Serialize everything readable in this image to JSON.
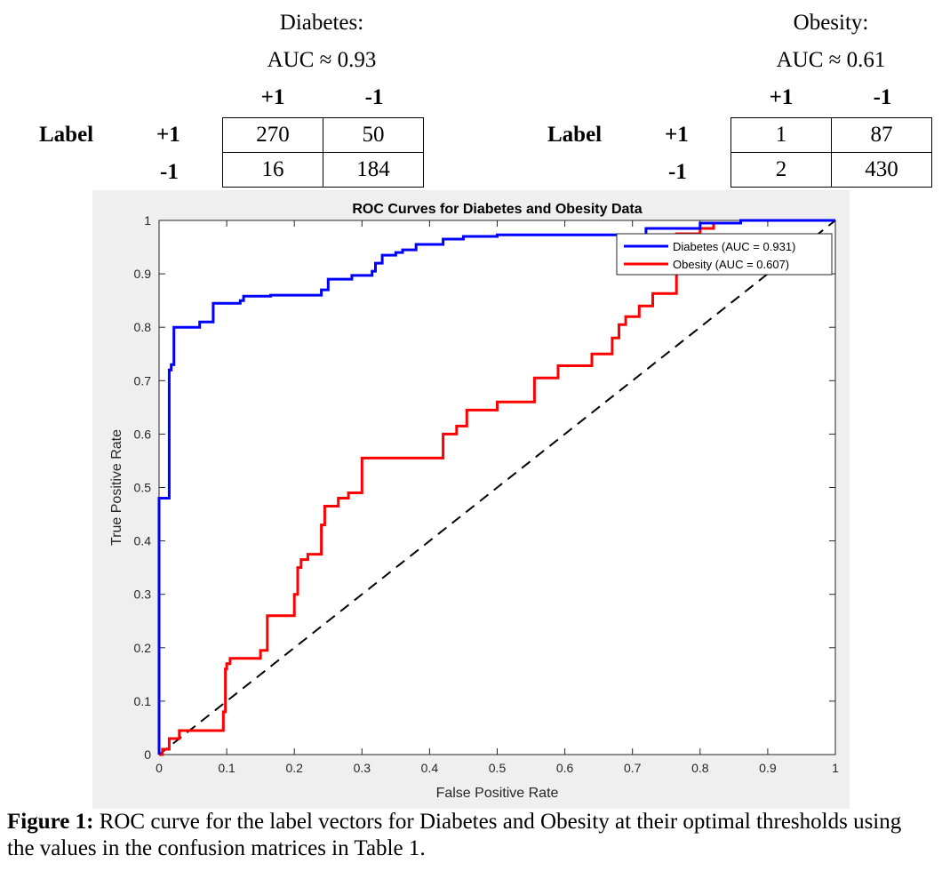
{
  "matrices": [
    {
      "title": "Diabetes:",
      "auc": "AUC ≈ 0.93",
      "row_label": "Label",
      "col_heads": [
        "+1",
        "-1"
      ],
      "row_heads": [
        "+1",
        "-1"
      ],
      "cells": [
        [
          "270",
          "50"
        ],
        [
          "16",
          "184"
        ]
      ]
    },
    {
      "title": "Obesity:",
      "auc": "AUC ≈ 0.61",
      "row_label": "Label",
      "col_heads": [
        "+1",
        "-1"
      ],
      "row_heads": [
        "+1",
        "-1"
      ],
      "cells": [
        [
          "1",
          "87"
        ],
        [
          "2",
          "430"
        ]
      ]
    }
  ],
  "chart_data": {
    "type": "line",
    "title": "ROC Curves for Diabetes and Obesity Data",
    "xlabel": "False Positive Rate",
    "ylabel": "True Positive Rate",
    "xlim": [
      0,
      1
    ],
    "ylim": [
      0,
      1
    ],
    "xticks": [
      "0",
      "0.1",
      "0.2",
      "0.3",
      "0.4",
      "0.5",
      "0.6",
      "0.7",
      "0.8",
      "0.9",
      "1"
    ],
    "yticks": [
      "0",
      "0.1",
      "0.2",
      "0.3",
      "0.4",
      "0.5",
      "0.6",
      "0.7",
      "0.8",
      "0.9",
      "1"
    ],
    "grid": false,
    "legend_position": "top-right",
    "series": [
      {
        "name": "Diabetes (AUC = 0.931)",
        "color": "#0000ff",
        "x": [
          0,
          0,
          0.005,
          0.005,
          0.015,
          0.015,
          0.018,
          0.018,
          0.022,
          0.022,
          0.06,
          0.06,
          0.08,
          0.08,
          0.12,
          0.12,
          0.125,
          0.125,
          0.165,
          0.165,
          0.24,
          0.24,
          0.25,
          0.25,
          0.285,
          0.285,
          0.315,
          0.315,
          0.32,
          0.32,
          0.33,
          0.33,
          0.35,
          0.35,
          0.36,
          0.36,
          0.38,
          0.38,
          0.42,
          0.42,
          0.45,
          0.45,
          0.5,
          0.5,
          0.72,
          0.72,
          0.8,
          0.8,
          0.86,
          0.86,
          1
        ],
        "y": [
          0,
          0.48,
          0.48,
          0.48,
          0.48,
          0.72,
          0.72,
          0.73,
          0.73,
          0.8,
          0.8,
          0.81,
          0.81,
          0.845,
          0.845,
          0.85,
          0.85,
          0.858,
          0.858,
          0.86,
          0.86,
          0.87,
          0.87,
          0.89,
          0.89,
          0.897,
          0.897,
          0.905,
          0.905,
          0.92,
          0.92,
          0.935,
          0.935,
          0.94,
          0.94,
          0.945,
          0.945,
          0.955,
          0.955,
          0.965,
          0.965,
          0.97,
          0.97,
          0.973,
          0.973,
          0.985,
          0.985,
          0.995,
          0.995,
          1,
          1
        ]
      },
      {
        "name": "Obesity (AUC = 0.607)",
        "color": "#ff0000",
        "x": [
          0,
          0.005,
          0.005,
          0.015,
          0.015,
          0.03,
          0.03,
          0.095,
          0.095,
          0.098,
          0.098,
          0.1,
          0.1,
          0.105,
          0.105,
          0.15,
          0.15,
          0.16,
          0.16,
          0.2,
          0.2,
          0.205,
          0.205,
          0.21,
          0.21,
          0.22,
          0.22,
          0.24,
          0.24,
          0.245,
          0.245,
          0.265,
          0.265,
          0.28,
          0.28,
          0.3,
          0.3,
          0.42,
          0.42,
          0.44,
          0.44,
          0.455,
          0.455,
          0.5,
          0.5,
          0.555,
          0.555,
          0.59,
          0.59,
          0.64,
          0.64,
          0.67,
          0.67,
          0.68,
          0.68,
          0.69,
          0.69,
          0.71,
          0.71,
          0.73,
          0.73,
          0.765,
          0.765,
          0.8,
          0.8,
          0.82,
          0.82,
          0.86,
          0.86,
          0.87,
          0.87,
          1
        ],
        "y": [
          0,
          0,
          0.01,
          0.01,
          0.03,
          0.03,
          0.045,
          0.045,
          0.08,
          0.08,
          0.16,
          0.16,
          0.17,
          0.17,
          0.18,
          0.18,
          0.195,
          0.195,
          0.26,
          0.26,
          0.3,
          0.3,
          0.35,
          0.35,
          0.365,
          0.365,
          0.375,
          0.375,
          0.43,
          0.43,
          0.465,
          0.465,
          0.48,
          0.48,
          0.49,
          0.49,
          0.555,
          0.555,
          0.6,
          0.6,
          0.615,
          0.615,
          0.645,
          0.645,
          0.66,
          0.66,
          0.705,
          0.705,
          0.728,
          0.728,
          0.75,
          0.75,
          0.78,
          0.78,
          0.805,
          0.805,
          0.82,
          0.82,
          0.84,
          0.84,
          0.863,
          0.863,
          0.975,
          0.975,
          0.985,
          0.985,
          0.995,
          0.995,
          1,
          1,
          1,
          1
        ]
      },
      {
        "name": "",
        "color": "#000000",
        "style": "dashed",
        "x": [
          0,
          1
        ],
        "y": [
          0,
          1
        ]
      }
    ]
  },
  "caption": {
    "label": "Figure 1:",
    "text": " ROC curve for the label vectors for Diabetes and Obesity at their optimal thresholds using the values in the confusion matrices in Table 1."
  }
}
